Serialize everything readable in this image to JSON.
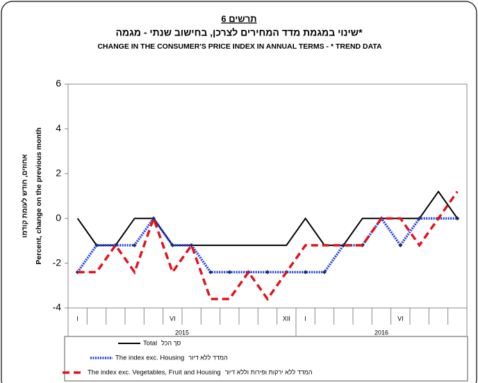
{
  "chart_data": {
    "type": "line",
    "figure_label": "תרשים 6",
    "title": "שינוי במגמת מדד המחירים לצרכן, בחישוב שנתי - מגמה*",
    "subtitle": "CHANGE IN THE CONSUMER'S PRICE INDEX IN ANNUAL TERMS - * TREND DATA",
    "y_label_he": "אחוזים, חודש לעומת קודמו",
    "y_label": "Percent, change on the previous month",
    "categories": [
      "I",
      null,
      null,
      null,
      null,
      "VI",
      null,
      null,
      null,
      null,
      null,
      "XII",
      "I",
      null,
      null,
      null,
      null,
      "VI",
      null,
      null,
      null
    ],
    "years": [
      "2015",
      "2016"
    ],
    "ylim": [
      -4,
      6
    ],
    "yticks": [
      -4,
      -2,
      0,
      2,
      4,
      6
    ],
    "grid": false,
    "series": [
      {
        "name": "Total",
        "name_he": "סך הכל",
        "color": "#000000",
        "values": [
          0,
          -1.2,
          -1.2,
          0,
          0,
          -1.2,
          -1.2,
          -1.2,
          -1.2,
          -1.2,
          -1.2,
          -1.2,
          0,
          -1.2,
          -1.2,
          0,
          0,
          0,
          0,
          1.2,
          0
        ]
      },
      {
        "name": "The index exc. Housing",
        "name_he": "המדד ללא דיור",
        "color": "#1f3fe0",
        "values": [
          -2.4,
          -1.2,
          -1.2,
          -1.2,
          0,
          -1.2,
          -1.2,
          -2.4,
          -2.4,
          -2.4,
          -2.4,
          -2.4,
          -2.4,
          -2.4,
          -1.2,
          -1.2,
          0,
          -1.2,
          0,
          0,
          0
        ]
      },
      {
        "name": "The index exc. Vegetables, Fruit and Housing",
        "name_he": "המדד ללא ירקות ופירות וללא דיור",
        "color": "#e3121b",
        "values": [
          -2.4,
          -2.4,
          -1.2,
          -2.4,
          0,
          -2.4,
          -1.2,
          -3.6,
          -3.6,
          -2.4,
          -3.6,
          -2.4,
          -1.2,
          -1.2,
          -1.2,
          -1.2,
          0,
          0,
          -1.2,
          0,
          1.2
        ]
      }
    ]
  }
}
